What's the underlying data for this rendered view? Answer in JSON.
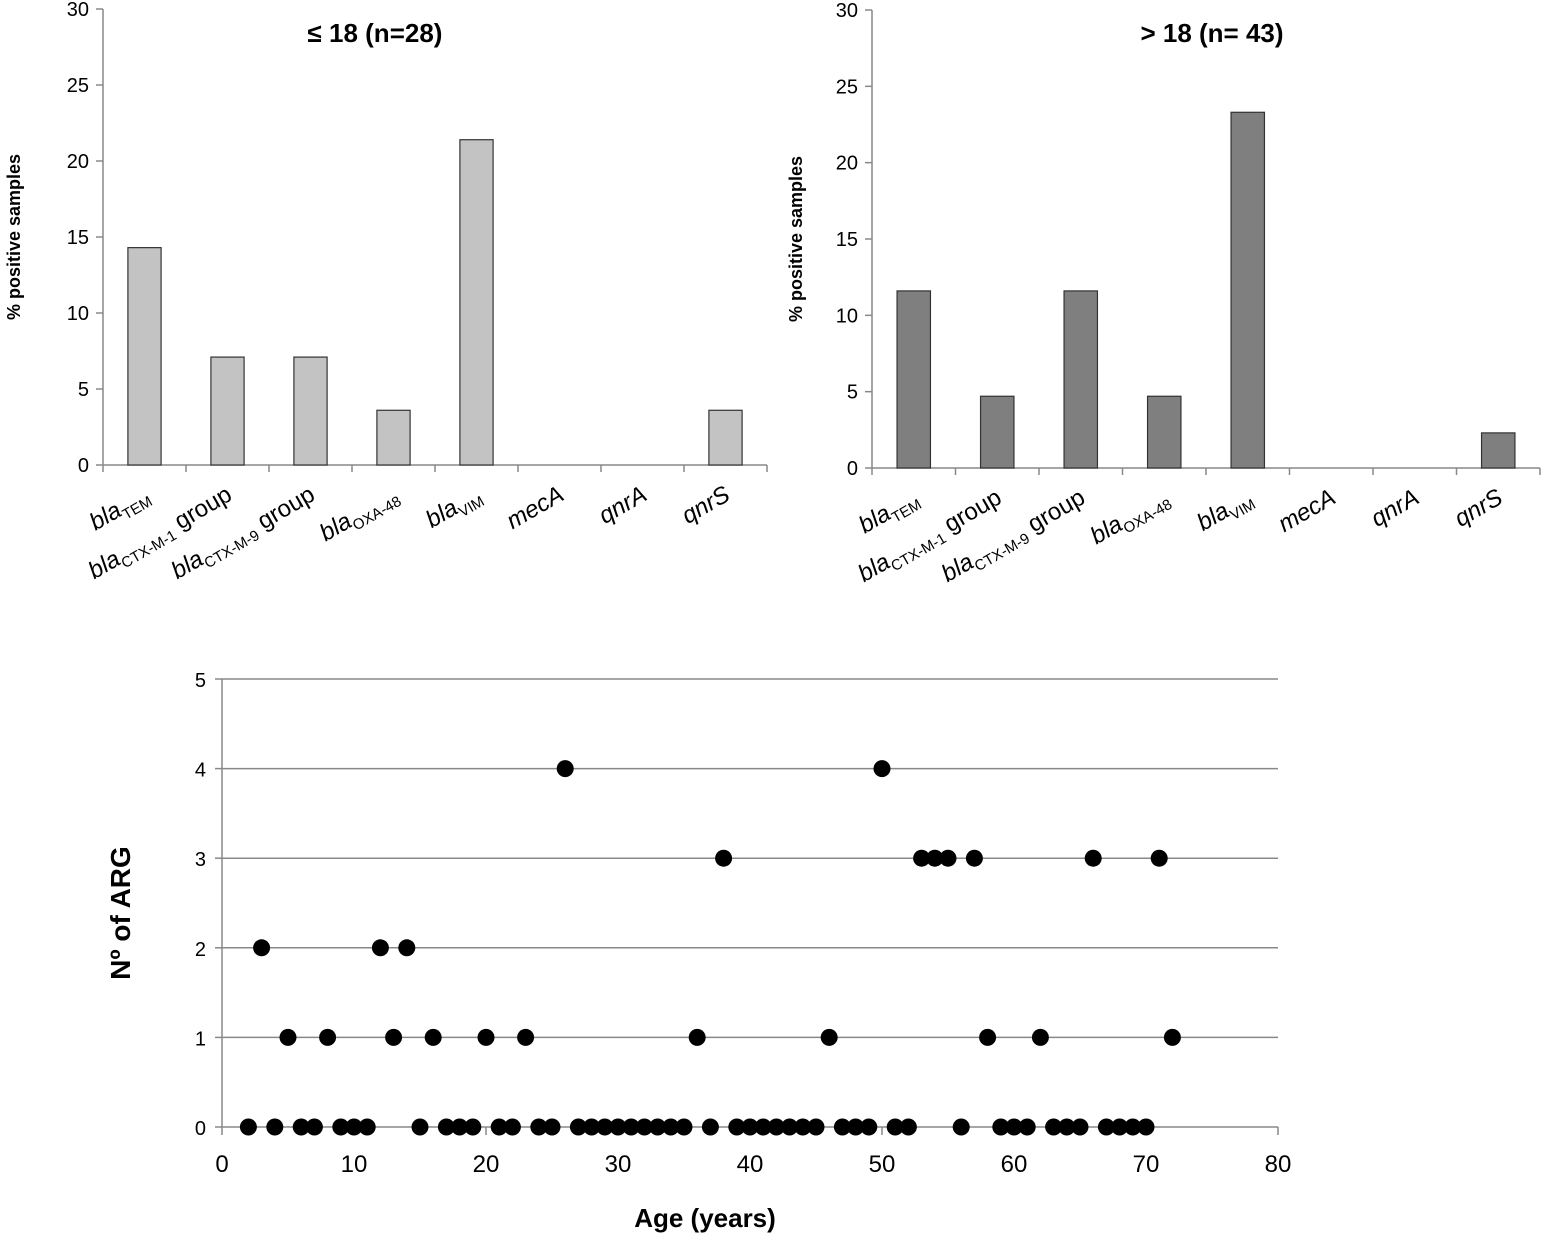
{
  "chart_data": [
    {
      "type": "bar",
      "title": "≤ 18 (n=28)",
      "ylabel": "% positive samples",
      "xlabel": "",
      "ylim": [
        0,
        30
      ],
      "yticks": [
        0,
        5,
        10,
        15,
        20,
        25,
        30
      ],
      "color": "#c3c3c3",
      "categories": [
        {
          "base": "bla",
          "sub": "TEM",
          "suffix": ""
        },
        {
          "base": "bla",
          "sub": "CTX-M-1",
          "suffix": " group"
        },
        {
          "base": "bla",
          "sub": "CTX-M-9",
          "suffix": " group"
        },
        {
          "base": "bla",
          "sub": "OXA-48",
          "suffix": ""
        },
        {
          "base": "bla",
          "sub": "VIM",
          "suffix": ""
        },
        {
          "base": "mecA",
          "sub": "",
          "suffix": ""
        },
        {
          "base": "qnrA",
          "sub": "",
          "suffix": ""
        },
        {
          "base": "qnrS",
          "sub": "",
          "suffix": ""
        }
      ],
      "values": [
        14.3,
        7.1,
        7.1,
        3.6,
        21.4,
        0,
        0,
        3.6
      ]
    },
    {
      "type": "bar",
      "title": "> 18 (n= 43)",
      "ylabel": "% positive samples",
      "xlabel": "",
      "ylim": [
        0,
        30
      ],
      "yticks": [
        0,
        5,
        10,
        15,
        20,
        25,
        30
      ],
      "color": "#7f7f7f",
      "categories": [
        {
          "base": "bla",
          "sub": "TEM",
          "suffix": ""
        },
        {
          "base": "bla",
          "sub": "CTX-M-1",
          "suffix": " group"
        },
        {
          "base": "bla",
          "sub": "CTX-M-9",
          "suffix": " group"
        },
        {
          "base": "bla",
          "sub": "OXA-48",
          "suffix": ""
        },
        {
          "base": "bla",
          "sub": "VIM",
          "suffix": ""
        },
        {
          "base": "mecA",
          "sub": "",
          "suffix": ""
        },
        {
          "base": "qnrA",
          "sub": "",
          "suffix": ""
        },
        {
          "base": "qnrS",
          "sub": "",
          "suffix": ""
        }
      ],
      "values": [
        11.6,
        4.7,
        11.6,
        4.7,
        23.3,
        0,
        0,
        2.3
      ]
    },
    {
      "type": "scatter",
      "title": "",
      "xlabel": "Age (years)",
      "ylabel": "Nº of ARG",
      "xlim": [
        0,
        80
      ],
      "ylim": [
        0,
        5
      ],
      "xticks": [
        0,
        10,
        20,
        30,
        40,
        50,
        60,
        70,
        80
      ],
      "yticks": [
        0,
        1,
        2,
        3,
        4,
        5
      ],
      "grid": "horizontal",
      "color": "#000000",
      "points": [
        [
          2,
          0
        ],
        [
          4,
          0
        ],
        [
          6,
          0
        ],
        [
          7,
          0
        ],
        [
          9,
          0
        ],
        [
          10,
          0
        ],
        [
          11,
          0
        ],
        [
          15,
          0
        ],
        [
          17,
          0
        ],
        [
          18,
          0
        ],
        [
          19,
          0
        ],
        [
          21,
          0
        ],
        [
          22,
          0
        ],
        [
          24,
          0
        ],
        [
          25,
          0
        ],
        [
          27,
          0
        ],
        [
          28,
          0
        ],
        [
          29,
          0
        ],
        [
          30,
          0
        ],
        [
          31,
          0
        ],
        [
          32,
          0
        ],
        [
          33,
          0
        ],
        [
          34,
          0
        ],
        [
          35,
          0
        ],
        [
          37,
          0
        ],
        [
          39,
          0
        ],
        [
          40,
          0
        ],
        [
          41,
          0
        ],
        [
          42,
          0
        ],
        [
          43,
          0
        ],
        [
          44,
          0
        ],
        [
          45,
          0
        ],
        [
          47,
          0
        ],
        [
          48,
          0
        ],
        [
          49,
          0
        ],
        [
          51,
          0
        ],
        [
          52,
          0
        ],
        [
          56,
          0
        ],
        [
          59,
          0
        ],
        [
          60,
          0
        ],
        [
          61,
          0
        ],
        [
          63,
          0
        ],
        [
          64,
          0
        ],
        [
          65,
          0
        ],
        [
          67,
          0
        ],
        [
          68,
          0
        ],
        [
          69,
          0
        ],
        [
          70,
          0
        ],
        [
          5,
          1
        ],
        [
          8,
          1
        ],
        [
          13,
          1
        ],
        [
          16,
          1
        ],
        [
          20,
          1
        ],
        [
          23,
          1
        ],
        [
          36,
          1
        ],
        [
          46,
          1
        ],
        [
          58,
          1
        ],
        [
          62,
          1
        ],
        [
          72,
          1
        ],
        [
          3,
          2
        ],
        [
          12,
          2
        ],
        [
          14,
          2
        ],
        [
          38,
          3
        ],
        [
          53,
          3
        ],
        [
          54,
          3
        ],
        [
          55,
          3
        ],
        [
          57,
          3
        ],
        [
          66,
          3
        ],
        [
          71,
          3
        ],
        [
          26,
          4
        ],
        [
          50,
          4
        ]
      ]
    }
  ]
}
